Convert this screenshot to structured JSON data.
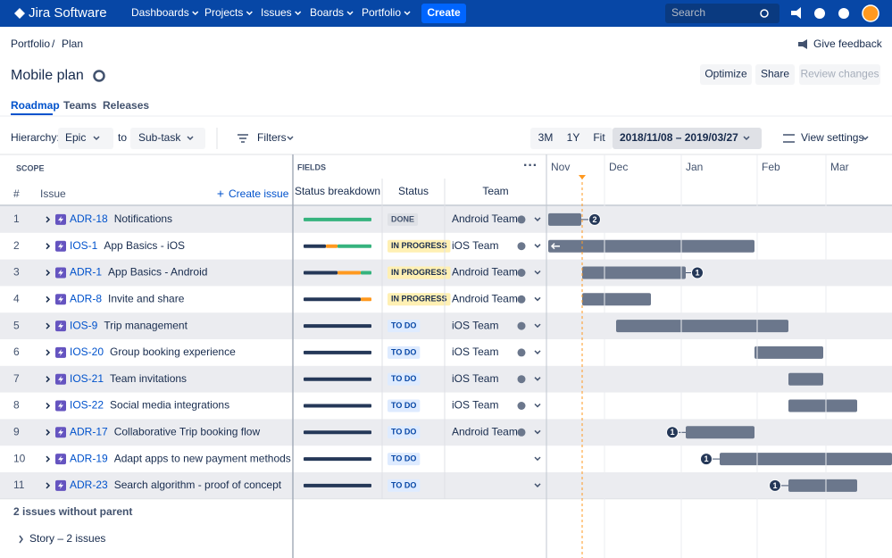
{
  "nav": {
    "logo": "Jira Software",
    "menus": [
      "Dashboards",
      "Projects",
      "Issues",
      "Boards",
      "Portfolio"
    ],
    "create": "Create",
    "search": "Search"
  },
  "breadcrumb": [
    "Portfolio",
    "/",
    "Plan"
  ],
  "feedback": "Give feedback",
  "title": "Mobile plan",
  "buttons": [
    "Optimize",
    "Share",
    "Review changes"
  ],
  "tabs": [
    "Roadmap",
    "Teams",
    "Releases"
  ],
  "toolbar": {
    "hierarchy": "Hierarchy:",
    "from": "Epic",
    "to": "to",
    "to_value": "Sub-task",
    "filters": "Filters",
    "ranges": [
      "3M",
      "1Y",
      "Fit"
    ],
    "date_range": "2018/11/08 – 2019/03/27",
    "view_settings": "View settings"
  },
  "table": {
    "scope": "SCOPE",
    "fields": "FIELDS",
    "num_header": "#",
    "issue_header": "Issue",
    "create_issue": "Create issue",
    "columns": [
      "Status breakdown",
      "Status",
      "Team"
    ],
    "months": [
      "Nov",
      "Dec",
      "Jan",
      "Feb",
      "Mar"
    ],
    "rows": [
      {
        "num": 1,
        "key": "ADR-18",
        "summary": "Notifications",
        "status": "DONE",
        "team": "Android Team",
        "badge": "2"
      },
      {
        "num": 2,
        "key": "IOS-1",
        "summary": "App Basics - iOS",
        "status": "IN PROGRESS",
        "team": "iOS Team"
      },
      {
        "num": 3,
        "key": "ADR-1",
        "summary": "App Basics - Android",
        "status": "IN PROGRESS",
        "team": "Android Team",
        "badge": "1"
      },
      {
        "num": 4,
        "key": "ADR-8",
        "summary": "Invite and share",
        "status": "IN PROGRESS",
        "team": "Android Team"
      },
      {
        "num": 5,
        "key": "IOS-9",
        "summary": "Trip management",
        "status": "TO DO",
        "team": "iOS Team"
      },
      {
        "num": 6,
        "key": "IOS-20",
        "summary": "Group booking experience",
        "status": "TO DO",
        "team": "iOS Team"
      },
      {
        "num": 7,
        "key": "IOS-21",
        "summary": "Team invitations",
        "status": "TO DO",
        "team": "iOS Team"
      },
      {
        "num": 8,
        "key": "IOS-22",
        "summary": "Social media integrations",
        "status": "TO DO",
        "team": "iOS Team"
      },
      {
        "num": 9,
        "key": "ADR-17",
        "summary": "Collaborative Trip booking flow",
        "status": "TO DO",
        "team": "Android Team",
        "badge": "1"
      },
      {
        "num": 10,
        "key": "ADR-19",
        "summary": "Adapt apps to new payment methods",
        "status": "TO DO",
        "badge": "1"
      },
      {
        "num": 11,
        "key": "ADR-23",
        "summary": "Search algorithm - proof of concept",
        "status": "TO DO",
        "badge": "1"
      }
    ]
  },
  "footer": {
    "without_parent": "2 issues without parent",
    "story": "Story – 2 issues"
  }
}
